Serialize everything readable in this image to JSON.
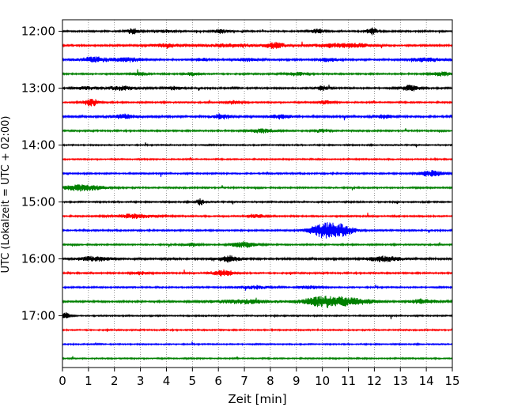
{
  "chart_data": {
    "type": "line",
    "title": "",
    "xlabel": "Zeit  [min]",
    "ylabel": "UTC (Lokalzeit = UTC + 02:00)",
    "xlim": [
      0,
      15
    ],
    "x_ticks": [
      "0",
      "1",
      "2",
      "3",
      "4",
      "5",
      "6",
      "7",
      "8",
      "9",
      "10",
      "11",
      "12",
      "13",
      "14",
      "15"
    ],
    "y_tick_labels": [
      "12:00",
      "13:00",
      "14:00",
      "15:00",
      "16:00",
      "17:00"
    ],
    "grid": "vertical dotted",
    "trace_interval_minutes": 15,
    "first_trace_time": "12:00",
    "trace_colors": [
      "#000000",
      "#ff0000",
      "#0000ff",
      "#008000"
    ],
    "traces": [
      {
        "time": "12:00",
        "color": "#000000",
        "base": 0.8,
        "events": [
          [
            2.7,
            0.25,
            3.5
          ],
          [
            4.0,
            0.3,
            2
          ],
          [
            6.1,
            0.3,
            2.5
          ],
          [
            9.8,
            0.3,
            2.5
          ],
          [
            11.9,
            0.2,
            4.5
          ]
        ]
      },
      {
        "time": "12:15",
        "color": "#ff0000",
        "base": 0.9,
        "events": [
          [
            4.0,
            0.6,
            2.2
          ],
          [
            6.5,
            1.0,
            2
          ],
          [
            8.2,
            0.4,
            3.5
          ],
          [
            10.3,
            0.7,
            2.2
          ],
          [
            11.3,
            0.6,
            2.2
          ]
        ]
      },
      {
        "time": "12:30",
        "color": "#0000ff",
        "base": 0.9,
        "events": [
          [
            1.2,
            0.6,
            3
          ],
          [
            2.5,
            0.6,
            2.5
          ],
          [
            5.4,
            0.3,
            2
          ],
          [
            7.1,
            0.4,
            2
          ],
          [
            10.2,
            0.4,
            2
          ],
          [
            14.0,
            0.7,
            2.2
          ]
        ]
      },
      {
        "time": "12:45",
        "color": "#008000",
        "base": 0.8,
        "events": [
          [
            3.0,
            0.3,
            2
          ],
          [
            5.0,
            0.3,
            2
          ],
          [
            9.0,
            0.4,
            2
          ],
          [
            14.6,
            0.4,
            2.5
          ]
        ]
      },
      {
        "time": "13:00",
        "color": "#000000",
        "base": 0.9,
        "events": [
          [
            0.9,
            0.4,
            2
          ],
          [
            2.3,
            0.6,
            2.5
          ],
          [
            4.3,
            0.3,
            2
          ],
          [
            10.0,
            0.3,
            2.5
          ],
          [
            13.4,
            0.3,
            4
          ]
        ]
      },
      {
        "time": "13:15",
        "color": "#ff0000",
        "base": 0.8,
        "events": [
          [
            1.1,
            0.3,
            4.5
          ],
          [
            6.6,
            0.3,
            2
          ],
          [
            10.1,
            0.3,
            2
          ]
        ]
      },
      {
        "time": "13:30",
        "color": "#0000ff",
        "base": 1.0,
        "events": [
          [
            2.4,
            0.4,
            3
          ],
          [
            6.1,
            0.3,
            3
          ],
          [
            8.4,
            0.4,
            2.5
          ],
          [
            12.4,
            0.3,
            2.5
          ]
        ]
      },
      {
        "time": "13:45",
        "color": "#008000",
        "base": 0.8,
        "events": [
          [
            7.7,
            0.5,
            2.5
          ],
          [
            10.0,
            0.3,
            2
          ]
        ]
      },
      {
        "time": "14:00",
        "color": "#000000",
        "base": 0.7,
        "events": []
      },
      {
        "time": "14:15",
        "color": "#ff0000",
        "base": 0.7,
        "events": []
      },
      {
        "time": "14:30",
        "color": "#0000ff",
        "base": 0.8,
        "events": [
          [
            14.2,
            0.5,
            3.5
          ]
        ]
      },
      {
        "time": "14:45",
        "color": "#008000",
        "base": 0.8,
        "events": [
          [
            0.8,
            0.8,
            4
          ]
        ]
      },
      {
        "time": "15:00",
        "color": "#000000",
        "base": 0.8,
        "events": [
          [
            5.3,
            0.15,
            4
          ]
        ]
      },
      {
        "time": "15:15",
        "color": "#ff0000",
        "base": 0.8,
        "events": [
          [
            2.8,
            0.8,
            2.5
          ],
          [
            7.5,
            0.3,
            2
          ]
        ]
      },
      {
        "time": "15:30",
        "color": "#0000ff",
        "base": 0.8,
        "events": [
          [
            10.1,
            0.6,
            9
          ],
          [
            10.8,
            0.5,
            5
          ]
        ]
      },
      {
        "time": "15:45",
        "color": "#008000",
        "base": 0.8,
        "events": [
          [
            7.0,
            0.5,
            3.5
          ],
          [
            5.0,
            0.3,
            2
          ]
        ]
      },
      {
        "time": "16:00",
        "color": "#000000",
        "base": 1.0,
        "events": [
          [
            1.2,
            0.6,
            3
          ],
          [
            6.4,
            0.4,
            4
          ],
          [
            12.4,
            0.7,
            3
          ]
        ]
      },
      {
        "time": "16:15",
        "color": "#ff0000",
        "base": 0.8,
        "events": [
          [
            6.2,
            0.4,
            4
          ],
          [
            3.0,
            0.3,
            2
          ]
        ]
      },
      {
        "time": "16:30",
        "color": "#0000ff",
        "base": 0.8,
        "events": [
          [
            7.4,
            0.5,
            2
          ],
          [
            9.5,
            0.4,
            2
          ]
        ]
      },
      {
        "time": "16:45",
        "color": "#008000",
        "base": 0.9,
        "events": [
          [
            7.0,
            1.2,
            2.5
          ],
          [
            10.1,
            0.9,
            6.5
          ],
          [
            11.3,
            0.8,
            3
          ],
          [
            13.9,
            0.6,
            2.5
          ]
        ]
      },
      {
        "time": "17:00",
        "color": "#000000",
        "base": 0.7,
        "events": [
          [
            0.1,
            0.2,
            4
          ]
        ]
      },
      {
        "time": "17:15",
        "color": "#ff0000",
        "base": 0.7,
        "events": []
      },
      {
        "time": "17:30",
        "color": "#0000ff",
        "base": 0.7,
        "events": []
      },
      {
        "time": "17:45",
        "color": "#008000",
        "base": 0.7,
        "events": []
      }
    ]
  }
}
